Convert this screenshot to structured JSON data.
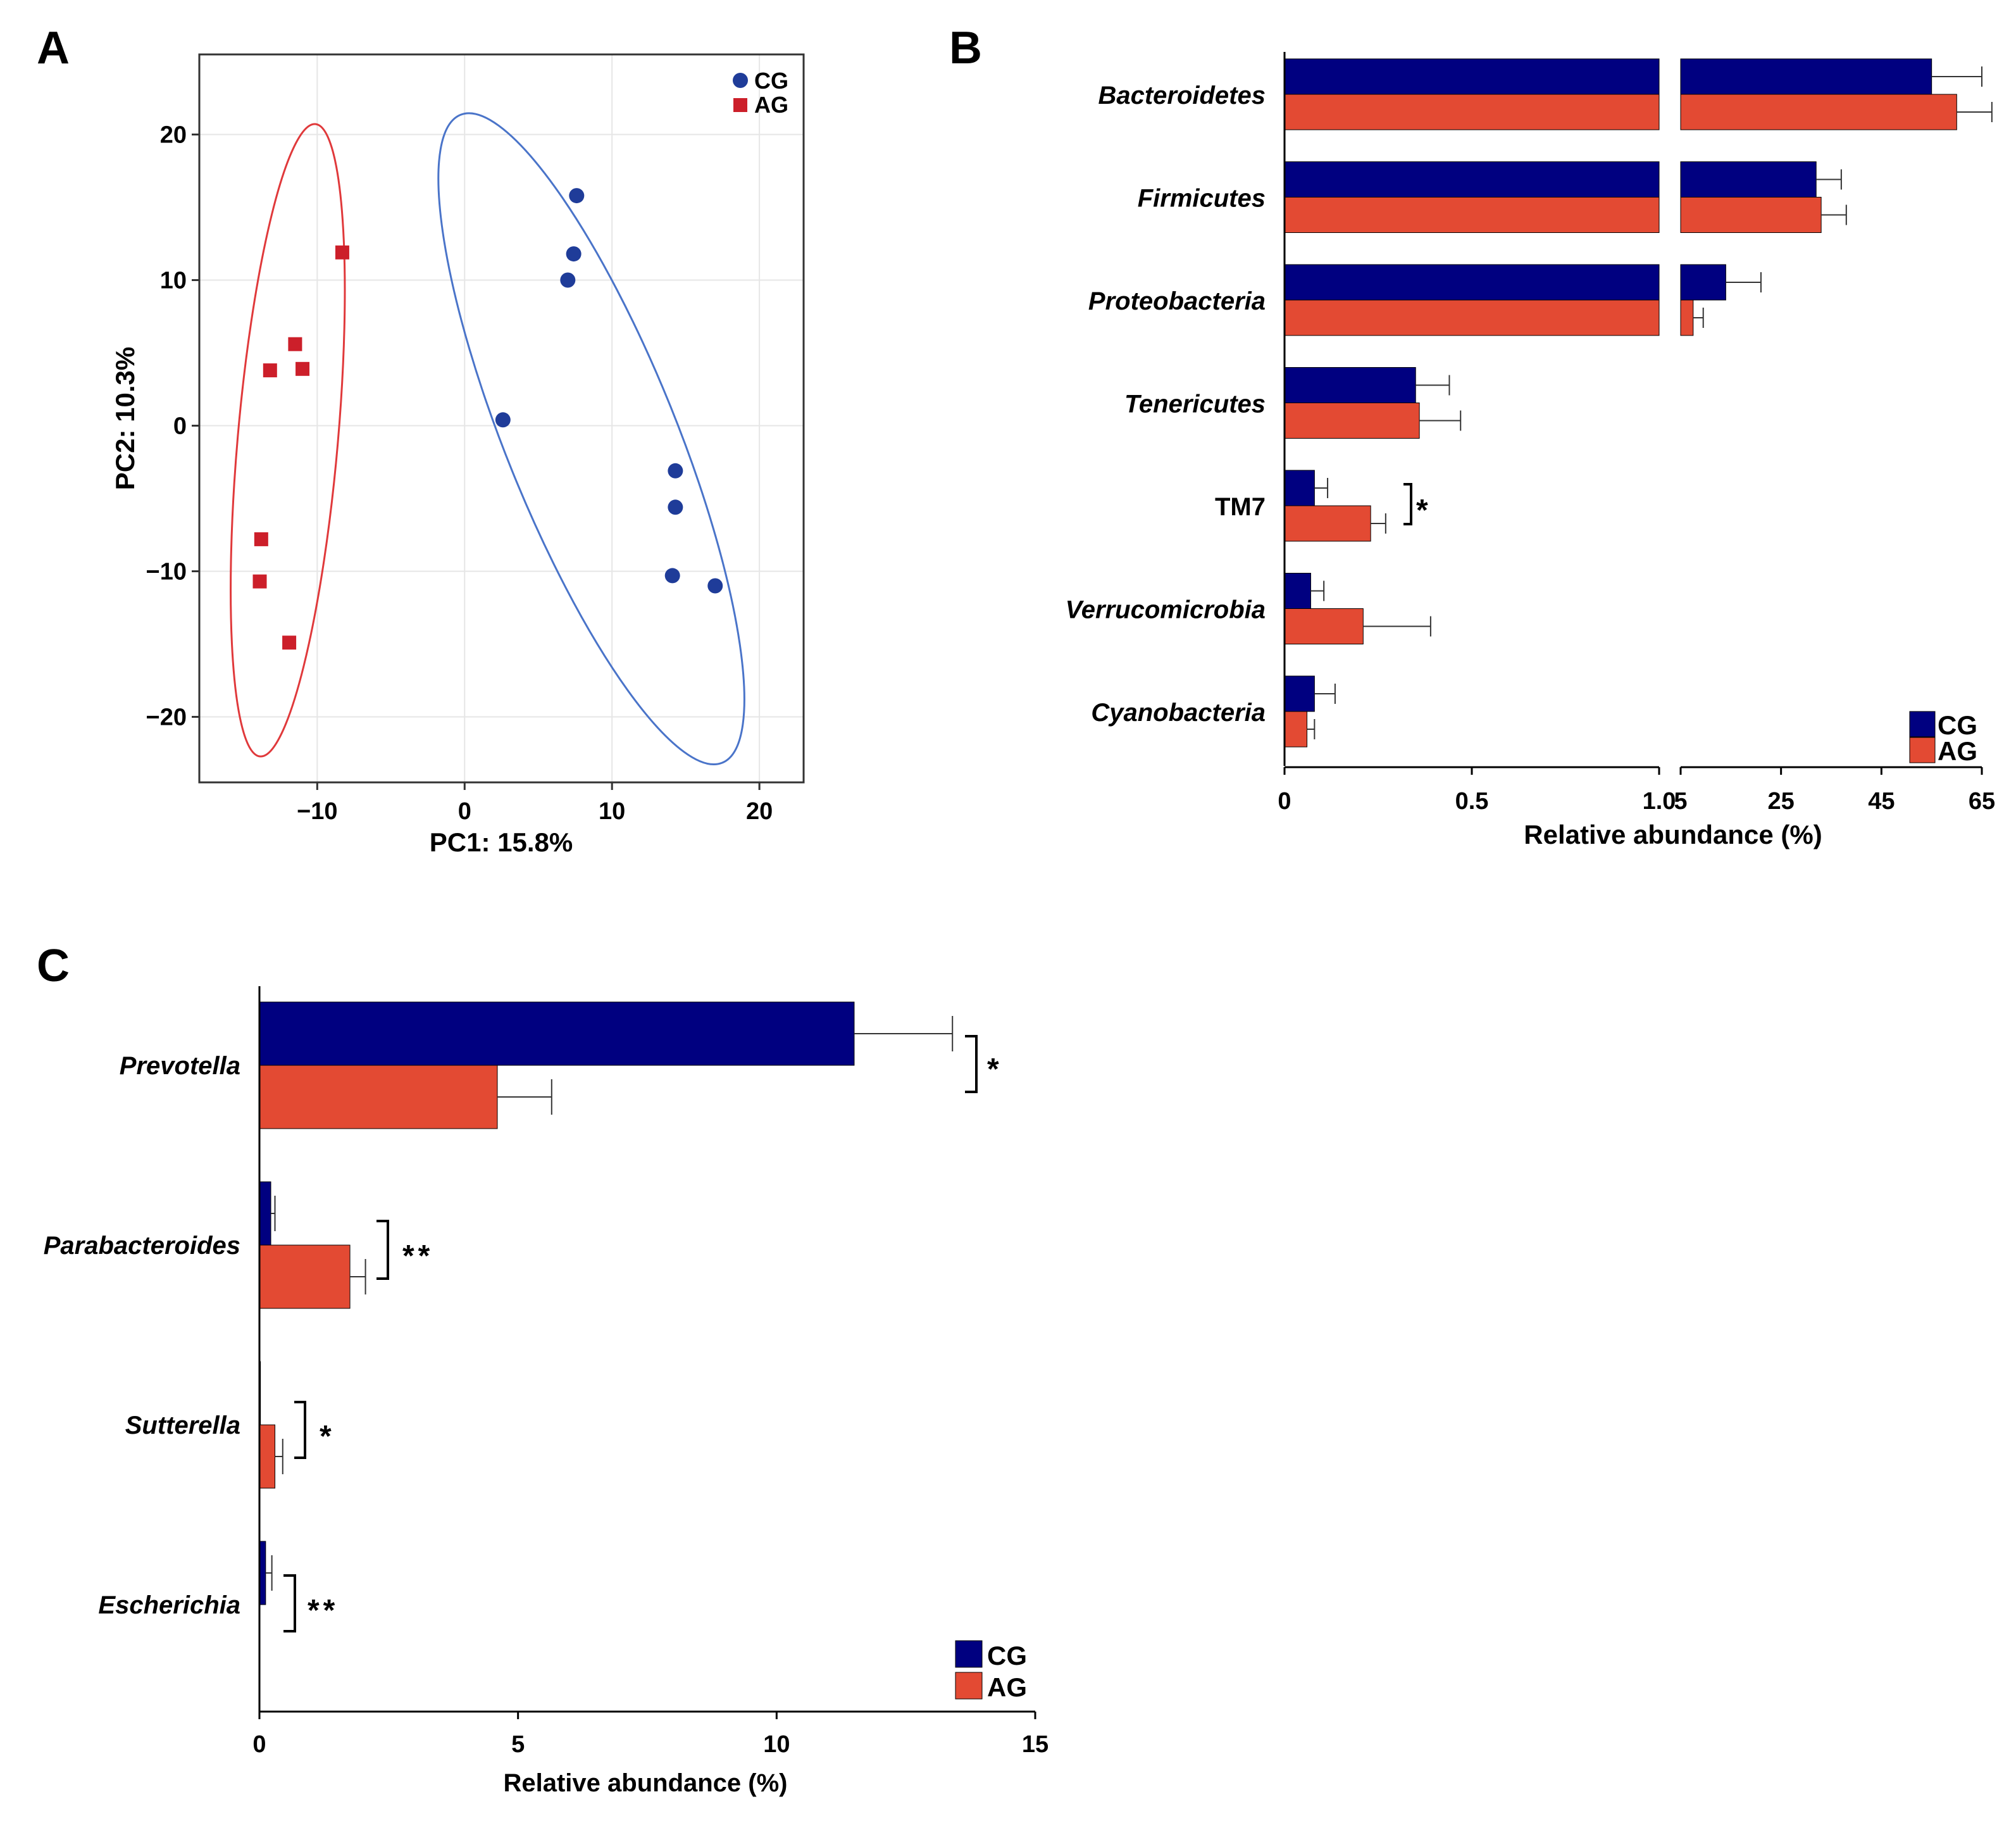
{
  "colors": {
    "cg": "#000080",
    "ag": "#E34A33",
    "cg_scatter": "#1F3C99",
    "ag_scatter": "#CC1F2A",
    "cg_ellipse": "#4A74C9",
    "ag_ellipse": "#E0393B"
  },
  "chart_data": [
    {
      "panel": "A",
      "type": "scatter",
      "xlabel": "PC1: 15.8%",
      "ylabel": "PC2: 10.3%",
      "xlim": [
        -18,
        23
      ],
      "ylim": [
        -24.5,
        25.5
      ],
      "xticks": [
        -10,
        0,
        10,
        20
      ],
      "yticks": [
        -20,
        -10,
        0,
        10,
        20
      ],
      "xtick_labels": [
        "−10",
        "0",
        "10",
        "20"
      ],
      "ytick_labels": [
        "−20",
        "−10",
        "0",
        "10",
        "20"
      ],
      "grid": true,
      "legend": "top-right",
      "series": [
        {
          "name": "CG",
          "marker": "circle",
          "points": [
            [
              7.6,
              15.8
            ],
            [
              7.4,
              11.8
            ],
            [
              7.0,
              10.0
            ],
            [
              2.6,
              0.4
            ],
            [
              14.3,
              -3.1
            ],
            [
              14.3,
              -5.6
            ],
            [
              14.1,
              -10.3
            ],
            [
              17.0,
              -11.0
            ]
          ]
        },
        {
          "name": "AG",
          "marker": "square",
          "points": [
            [
              -8.3,
              11.9
            ],
            [
              -11.5,
              5.6
            ],
            [
              -13.2,
              3.8
            ],
            [
              -11.0,
              3.9
            ],
            [
              -13.8,
              -7.8
            ],
            [
              -13.9,
              -10.7
            ],
            [
              -11.9,
              -14.9
            ]
          ]
        }
      ],
      "ellipses": [
        {
          "group": "CG",
          "center": [
            8.6,
            -0.9
          ],
          "radii": [
            5.8,
            24.0
          ],
          "angle_deg": 22
        },
        {
          "group": "AG",
          "center": [
            -12.0,
            -1.0
          ],
          "radii": [
            3.4,
            21.8
          ],
          "angle_deg": -5
        }
      ]
    },
    {
      "panel": "B",
      "type": "bar",
      "orientation": "horizontal",
      "broken_axis": true,
      "xlabel": "Relative abundance (%)",
      "segments": [
        {
          "range": [
            0,
            1.0
          ],
          "ticks": [
            0,
            0.5,
            1.0
          ],
          "tick_labels": [
            "0",
            "0.5",
            "1.0"
          ]
        },
        {
          "range": [
            5,
            65
          ],
          "ticks": [
            5,
            25,
            45,
            65
          ],
          "tick_labels": [
            "5",
            "25",
            "45",
            "65"
          ]
        }
      ],
      "legend": "bottom-right",
      "categories": [
        {
          "label": "Bacteroidetes",
          "italic": true
        },
        {
          "label": "Firmicutes",
          "italic": true
        },
        {
          "label": "Proteobacteria",
          "italic": true
        },
        {
          "label": "Tenericutes",
          "italic": true
        },
        {
          "label": "TM7",
          "italic": false
        },
        {
          "label": "Verrucomicrobia",
          "italic": true
        },
        {
          "label": "Cyanobacteria",
          "italic": true
        }
      ],
      "series": [
        {
          "name": "CG",
          "values": [
            55.0,
            32.0,
            14.0,
            0.35,
            0.08,
            0.07,
            0.08
          ],
          "errors": [
            10.0,
            5.0,
            7.0,
            0.09,
            0.035,
            0.035,
            0.055
          ]
        },
        {
          "name": "AG",
          "values": [
            60.0,
            33.0,
            7.5,
            0.36,
            0.23,
            0.21,
            0.06
          ],
          "errors": [
            7.0,
            5.0,
            2.0,
            0.11,
            0.04,
            0.18,
            0.02
          ]
        }
      ],
      "significance": [
        {
          "category": "TM7",
          "label": "*"
        }
      ]
    },
    {
      "panel": "C",
      "type": "bar",
      "orientation": "horizontal",
      "xlabel": "Relative abundance (%)",
      "xlim": [
        0,
        15
      ],
      "xticks": [
        0,
        5,
        10,
        15
      ],
      "xtick_labels": [
        "0",
        "5",
        "10",
        "15"
      ],
      "legend": "bottom-right",
      "categories": [
        {
          "label": "Prevotella",
          "italic": true
        },
        {
          "label": "Parabacteroides",
          "italic": true
        },
        {
          "label": "Sutterella",
          "italic": true
        },
        {
          "label": "Escherichia",
          "italic": true
        }
      ],
      "series": [
        {
          "name": "CG",
          "values": [
            11.5,
            0.22,
            0.02,
            0.12
          ],
          "errors": [
            1.9,
            0.08,
            0.0,
            0.12
          ]
        },
        {
          "name": "AG",
          "values": [
            4.6,
            1.75,
            0.3,
            0.0
          ],
          "errors": [
            1.05,
            0.3,
            0.15,
            0.0
          ]
        }
      ],
      "significance": [
        {
          "category": "Prevotella",
          "label": "*"
        },
        {
          "category": "Parabacteroides",
          "label": "**"
        },
        {
          "category": "Sutterella",
          "label": "*"
        },
        {
          "category": "Escherichia",
          "label": "**"
        }
      ]
    }
  ]
}
